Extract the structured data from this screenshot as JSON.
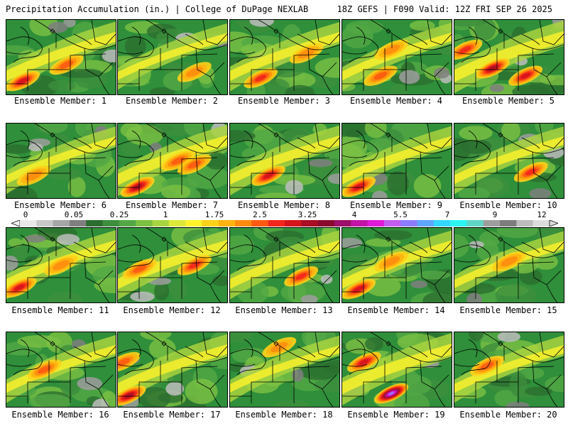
{
  "header": {
    "left_title": "Precipitation Accumulation (in.) | College of DuPage NEXLAB",
    "right_title": "18Z GEFS | F090 Valid: 12Z FRI SEP 26 2025"
  },
  "colorbar": {
    "labels": [
      "0",
      "0.05",
      "0.25",
      "1",
      "1.75",
      "2.5",
      "3.25",
      "4",
      "5.5",
      "7",
      "9",
      "12"
    ],
    "colors": [
      "#e8e8e8",
      "#c8c8c8",
      "#a6a6a6",
      "#7f7f7f",
      "#2c6e2f",
      "#3d8f3d",
      "#53a845",
      "#7cc043",
      "#a8d440",
      "#dce83a",
      "#fff22a",
      "#ffd21a",
      "#ffb30f",
      "#ff8c0f",
      "#ff5a12",
      "#f2261c",
      "#d4141d",
      "#a80f24",
      "#8a0a2e",
      "#9d0f6b",
      "#c214a6",
      "#e01ad8",
      "#c25ef0",
      "#8c7dff",
      "#5fa6ff",
      "#34d8ff",
      "#2bf5f2",
      "#5fd6c6",
      "#9e9e9e",
      "#7d7d7d",
      "#bdbdbd",
      "#dcdcdc"
    ]
  },
  "members": [
    {
      "label": "Ensemble Member: 1",
      "intensity": 0.62,
      "hotspots": [
        [
          0.15,
          0.82,
          2.6
        ],
        [
          0.55,
          0.6,
          1.6
        ]
      ]
    },
    {
      "label": "Ensemble Member: 2",
      "intensity": 0.35,
      "hotspots": [
        [
          0.7,
          0.7,
          1.2
        ]
      ]
    },
    {
      "label": "Ensemble Member: 3",
      "intensity": 0.55,
      "hotspots": [
        [
          0.28,
          0.78,
          2.4
        ],
        [
          0.7,
          0.45,
          1.4
        ]
      ]
    },
    {
      "label": "Ensemble Member: 4",
      "intensity": 0.45,
      "hotspots": [
        [
          0.35,
          0.75,
          1.8
        ],
        [
          0.45,
          0.4,
          1.5
        ]
      ]
    },
    {
      "label": "Ensemble Member: 5",
      "intensity": 0.8,
      "hotspots": [
        [
          0.35,
          0.65,
          3.0
        ],
        [
          0.65,
          0.75,
          2.8
        ],
        [
          0.1,
          0.4,
          2.2
        ]
      ]
    },
    {
      "label": "Ensemble Member: 6",
      "intensity": 0.42,
      "hotspots": [
        [
          0.25,
          0.7,
          1.5
        ]
      ]
    },
    {
      "label": "Ensemble Member: 7",
      "intensity": 0.7,
      "hotspots": [
        [
          0.18,
          0.85,
          3.4
        ],
        [
          0.55,
          0.5,
          2.0
        ],
        [
          0.7,
          0.55,
          1.9
        ]
      ]
    },
    {
      "label": "Ensemble Member: 8",
      "intensity": 0.6,
      "hotspots": [
        [
          0.35,
          0.7,
          2.6
        ]
      ]
    },
    {
      "label": "Ensemble Member: 9",
      "intensity": 0.5,
      "hotspots": [
        [
          0.15,
          0.85,
          2.7
        ]
      ]
    },
    {
      "label": "Ensemble Member: 10",
      "intensity": 0.45,
      "hotspots": [
        [
          0.7,
          0.65,
          2.1
        ]
      ]
    },
    {
      "label": "Ensemble Member: 11",
      "intensity": 0.55,
      "hotspots": [
        [
          0.12,
          0.8,
          2.9
        ],
        [
          0.5,
          0.5,
          1.5
        ]
      ]
    },
    {
      "label": "Ensemble Member: 12",
      "intensity": 0.6,
      "hotspots": [
        [
          0.7,
          0.5,
          2.4
        ],
        [
          0.2,
          0.55,
          1.8
        ]
      ]
    },
    {
      "label": "Ensemble Member: 13",
      "intensity": 0.55,
      "hotspots": [
        [
          0.65,
          0.65,
          2.2
        ]
      ]
    },
    {
      "label": "Ensemble Member: 14",
      "intensity": 0.5,
      "hotspots": [
        [
          0.15,
          0.82,
          2.8
        ],
        [
          0.45,
          0.45,
          1.5
        ]
      ]
    },
    {
      "label": "Ensemble Member: 15",
      "intensity": 0.38,
      "hotspots": [
        [
          0.5,
          0.45,
          1.4
        ]
      ]
    },
    {
      "label": "Ensemble Member: 16",
      "intensity": 0.45,
      "hotspots": [
        [
          0.35,
          0.5,
          1.6
        ]
      ]
    },
    {
      "label": "Ensemble Member: 17",
      "intensity": 0.6,
      "hotspots": [
        [
          0.1,
          0.85,
          3.1
        ],
        [
          0.05,
          0.4,
          2.0
        ]
      ]
    },
    {
      "label": "Ensemble Member: 18",
      "intensity": 0.38,
      "hotspots": [
        [
          0.45,
          0.2,
          1.5
        ]
      ]
    },
    {
      "label": "Ensemble Member: 19",
      "intensity": 0.75,
      "hotspots": [
        [
          0.45,
          0.82,
          5.2
        ],
        [
          0.2,
          0.4,
          2.6
        ]
      ]
    },
    {
      "label": "Ensemble Member: 20",
      "intensity": 0.42,
      "hotspots": [
        [
          0.3,
          0.45,
          1.6
        ]
      ]
    }
  ]
}
